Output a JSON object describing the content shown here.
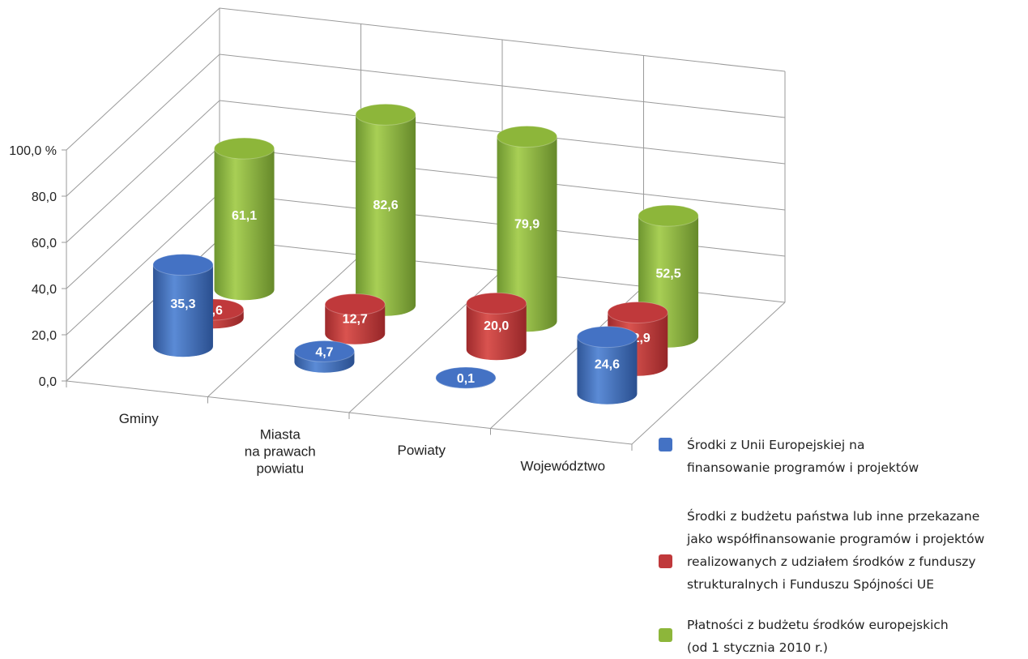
{
  "chart_data": {
    "type": "bar",
    "style": "3d-cylinder",
    "categories": [
      "Gminy",
      "Miasta na prawach powiatu",
      "Powiaty",
      "Województwo"
    ],
    "category_label_lines": [
      [
        "Gminy"
      ],
      [
        "Miasta",
        "na prawach",
        "powiatu"
      ],
      [
        "Powiaty"
      ],
      [
        "Województwo"
      ]
    ],
    "series": [
      {
        "name": "Środki z Unii Europejskiej na finansowanie programów i projektów",
        "name_lines": [
          "Środki z Unii Europejskiej na",
          "finansowanie programów i projektów"
        ],
        "color": "#4472C4",
        "values": [
          35.3,
          4.7,
          0.1,
          24.6
        ],
        "labels": [
          "35,3",
          "4,7",
          "0,1",
          "24,6"
        ]
      },
      {
        "name": "Środki z budżetu państwa lub inne przekazane jako współfinansowanie programów i projektów realizowanych z udziałem środków z funduszy strukturalnych i Funduszu Spójności UE",
        "name_lines": [
          "Środki z budżetu państwa lub inne przekazane",
          "jako współfinansowanie programów i projektów",
          "realizowanych z udziałem środków z funduszy",
          "strukturalnych i Funduszu Spójności UE"
        ],
        "color": "#C0393B",
        "values": [
          3.6,
          12.7,
          20.0,
          22.9
        ],
        "labels": [
          "3,6",
          "12,7",
          "20,0",
          "22,9"
        ]
      },
      {
        "name": "Płatności z budżetu środków europejskich (od 1 stycznia 2010 r.)",
        "name_lines": [
          "Płatności z budżetu środków europejskich",
          "(od 1 stycznia 2010 r.)"
        ],
        "color": "#8DB63A",
        "values": [
          61.1,
          82.6,
          79.9,
          52.5
        ],
        "labels": [
          "61,1",
          "82,6",
          "79,9",
          "52,5"
        ]
      }
    ],
    "y_ticks": [
      "0,0",
      "20,0",
      "40,0",
      "60,0",
      "80,0",
      "100,0 %"
    ],
    "ylim": [
      0,
      100
    ],
    "grid": true,
    "legend_position": "bottom-right"
  }
}
